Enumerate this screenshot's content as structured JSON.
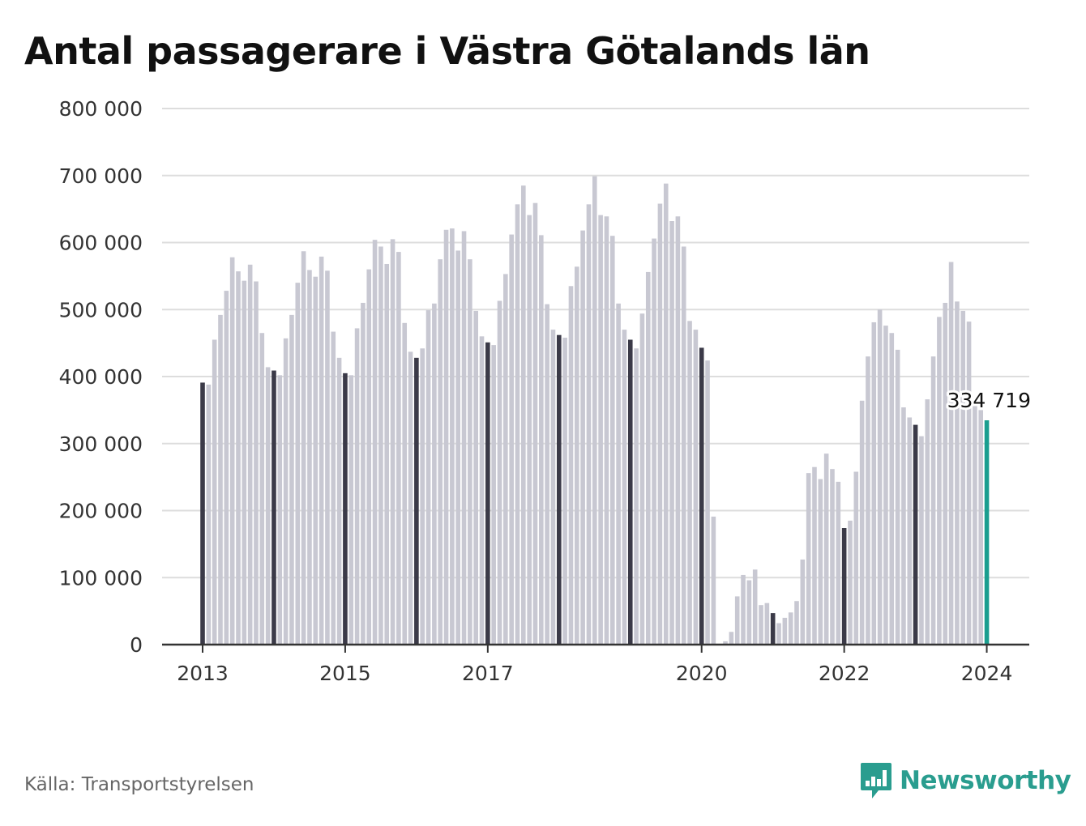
{
  "title": "Antal passagerare i Västra Götalands län",
  "source": "Källa: Transportstyrelsen",
  "brand": "Newsworthy",
  "colors": {
    "bar": "#c8c8d2",
    "january": "#3b3a48",
    "latest": "#1a9e8f",
    "grid": "#dddddd",
    "axis": "#333333",
    "brand": "#2a9d8f"
  },
  "chart_data": {
    "type": "bar",
    "title": "Antal passagerare i Västra Götalands län",
    "xlabel": "",
    "ylabel": "",
    "ylim": [
      0,
      800000
    ],
    "yticks": [
      0,
      100000,
      200000,
      300000,
      400000,
      500000,
      600000,
      700000,
      800000
    ],
    "ytick_labels": [
      "0",
      "100 000",
      "200 000",
      "300 000",
      "400 000",
      "500 000",
      "600 000",
      "700 000",
      "800 000"
    ],
    "x_tick_labels": [
      {
        "label": "2013",
        "year": 2013
      },
      {
        "label": "2015",
        "year": 2015
      },
      {
        "label": "2017",
        "year": 2017
      },
      {
        "label": "2020",
        "year": 2020
      },
      {
        "label": "2022",
        "year": 2022
      },
      {
        "label": "2024",
        "year": 2024
      }
    ],
    "grid": true,
    "highlight": "January bars dark, latest bar teal",
    "last_value_label": "334 719",
    "series": [
      {
        "year": 2013,
        "values": [
          391000,
          388000,
          455000,
          492000,
          528000,
          578000,
          557000,
          543000,
          567000,
          542000,
          465000,
          414000
        ]
      },
      {
        "year": 2014,
        "values": [
          409000,
          402000,
          457000,
          492000,
          540000,
          587000,
          559000,
          549000,
          579000,
          558000,
          467000,
          428000
        ]
      },
      {
        "year": 2015,
        "values": [
          405000,
          402000,
          472000,
          510000,
          560000,
          604000,
          594000,
          568000,
          605000,
          586000,
          480000,
          437000
        ]
      },
      {
        "year": 2016,
        "values": [
          428000,
          442000,
          499000,
          509000,
          575000,
          619000,
          621000,
          588000,
          617000,
          575000,
          498000,
          460000
        ]
      },
      {
        "year": 2017,
        "values": [
          451000,
          447000,
          513000,
          553000,
          612000,
          657000,
          685000,
          641000,
          659000,
          611000,
          508000,
          470000
        ]
      },
      {
        "year": 2018,
        "values": [
          462000,
          458000,
          535000,
          564000,
          618000,
          657000,
          699000,
          641000,
          639000,
          610000,
          509000,
          470000
        ]
      },
      {
        "year": 2019,
        "values": [
          455000,
          442000,
          494000,
          556000,
          606000,
          658000,
          688000,
          632000,
          639000,
          594000,
          483000,
          470000
        ]
      },
      {
        "year": 2020,
        "values": [
          443000,
          424000,
          191000,
          0,
          5000,
          19000,
          72000,
          104000,
          96000,
          112000,
          59000,
          62000
        ]
      },
      {
        "year": 2021,
        "values": [
          47000,
          32000,
          40000,
          48000,
          65000,
          127000,
          256000,
          265000,
          247000,
          285000,
          262000,
          243000
        ]
      },
      {
        "year": 2022,
        "values": [
          174000,
          185000,
          258000,
          364000,
          430000,
          481000,
          500000,
          476000,
          465000,
          440000,
          354000,
          339000
        ]
      },
      {
        "year": 2023,
        "values": [
          328000,
          311000,
          366000,
          430000,
          489000,
          510000,
          571000,
          512000,
          498000,
          482000,
          360000,
          350000
        ]
      },
      {
        "year": 2024,
        "values": [
          334719
        ]
      }
    ]
  }
}
